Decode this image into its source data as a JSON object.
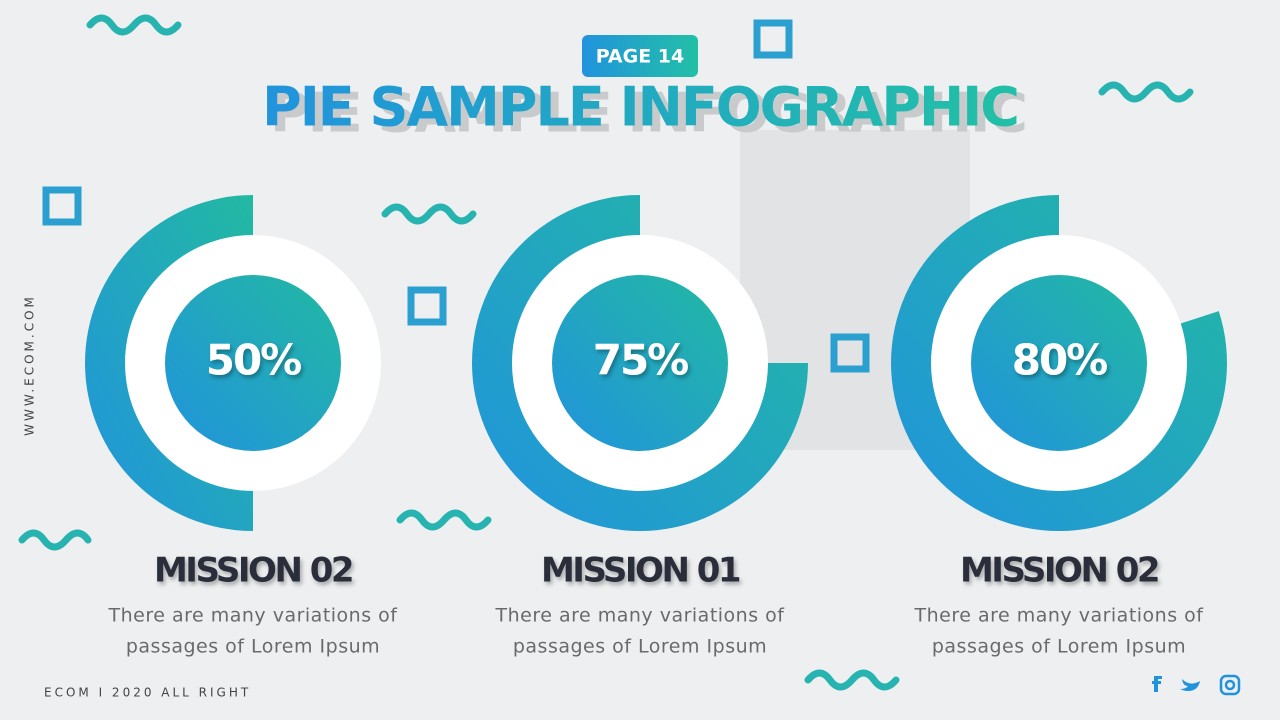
{
  "page": "PAGE 14",
  "title": "PIE SAMPLE INFOGRAPHIC",
  "website": "WWW.ECOM.COM",
  "footer": "ECOM I 2020 ALL RIGHT",
  "chart_data": [
    {
      "type": "donut",
      "title": "MISSION 02",
      "values": [
        50
      ],
      "value_labels": [
        "50%"
      ],
      "colors": [
        "#2193dd",
        "#22b9a2"
      ],
      "caption": [
        "There are many variations of",
        "passages of Lorem Ipsum"
      ]
    },
    {
      "type": "donut",
      "title": "MISSION 01",
      "values": [
        75
      ],
      "value_labels": [
        "75%"
      ],
      "colors": [
        "#2193dd",
        "#22b9a2"
      ],
      "caption": [
        "There are many variations of",
        "passages of Lorem Ipsum"
      ]
    },
    {
      "type": "donut",
      "title": "MISSION 02",
      "values": [
        80
      ],
      "value_labels": [
        "80%"
      ],
      "colors": [
        "#2193dd",
        "#22b9a2"
      ],
      "caption": [
        "There are many variations of",
        "passages of Lorem Ipsum"
      ]
    }
  ]
}
